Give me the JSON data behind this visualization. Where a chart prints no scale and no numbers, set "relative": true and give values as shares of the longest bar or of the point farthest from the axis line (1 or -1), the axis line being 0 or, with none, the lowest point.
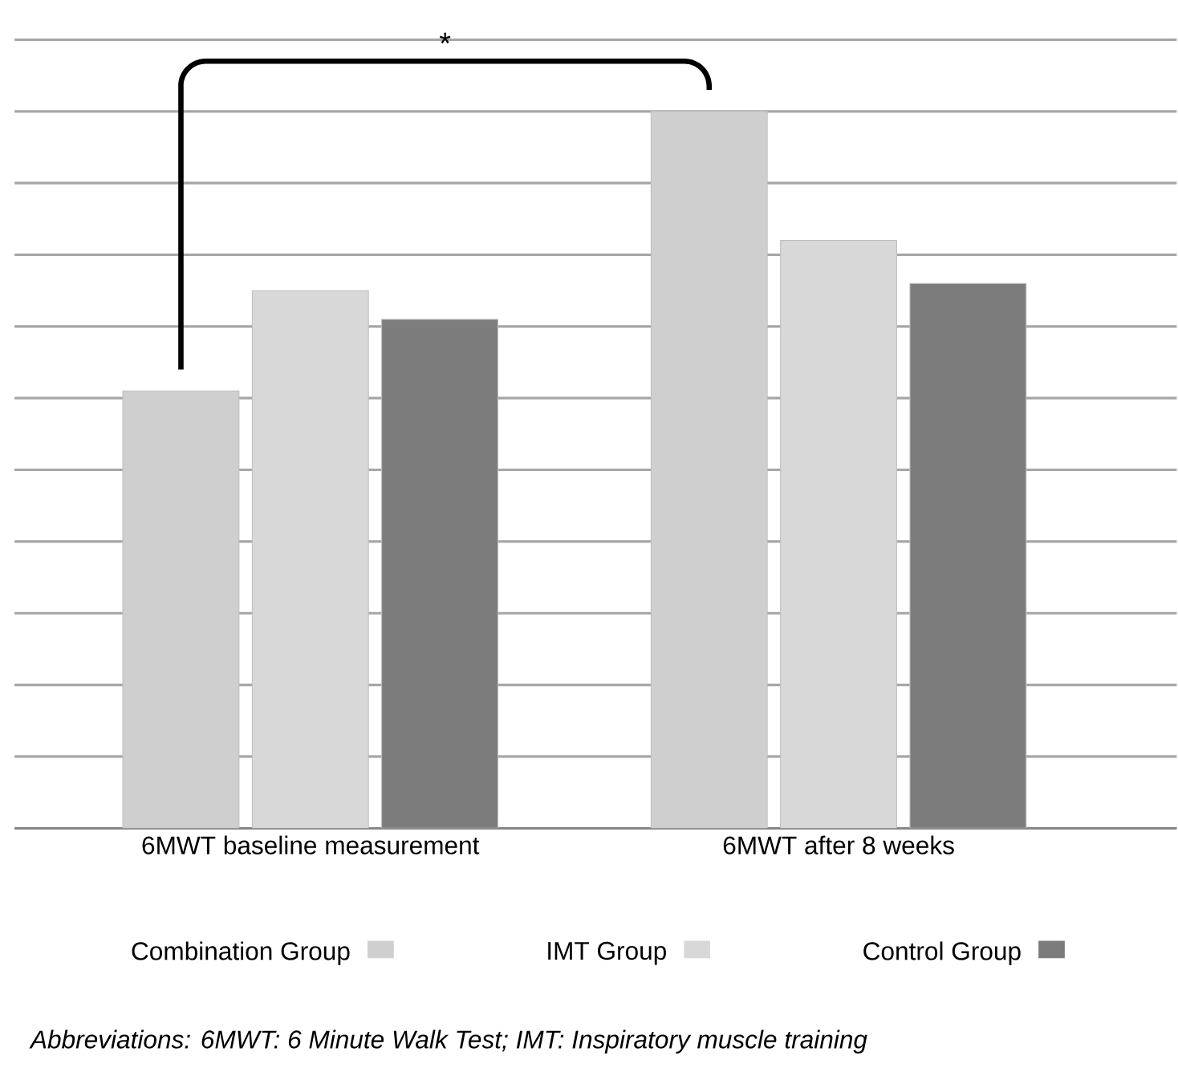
{
  "chart_data": {
    "type": "bar",
    "relative": true,
    "grid": "y",
    "legend": "bottom",
    "categories": [
      "6MWT baseline measurement",
      "6MWT after 8 weeks"
    ],
    "series": [
      {
        "name": "Combination Group",
        "color": "#cfcfcf",
        "values": [
          0.61,
          1
        ]
      },
      {
        "name": "IMT Group",
        "color": "#d8d8d8",
        "values": [
          0.75,
          0.82
        ]
      },
      {
        "name": "Control Group",
        "color": "#7c7c7c",
        "values": [
          0.71,
          0.76
        ]
      }
    ],
    "annotations": [
      "*",
      "Abbreviations: 6MWT: 6 Minute Walk Test; IMT: Inspiratory muscle training"
    ]
  }
}
